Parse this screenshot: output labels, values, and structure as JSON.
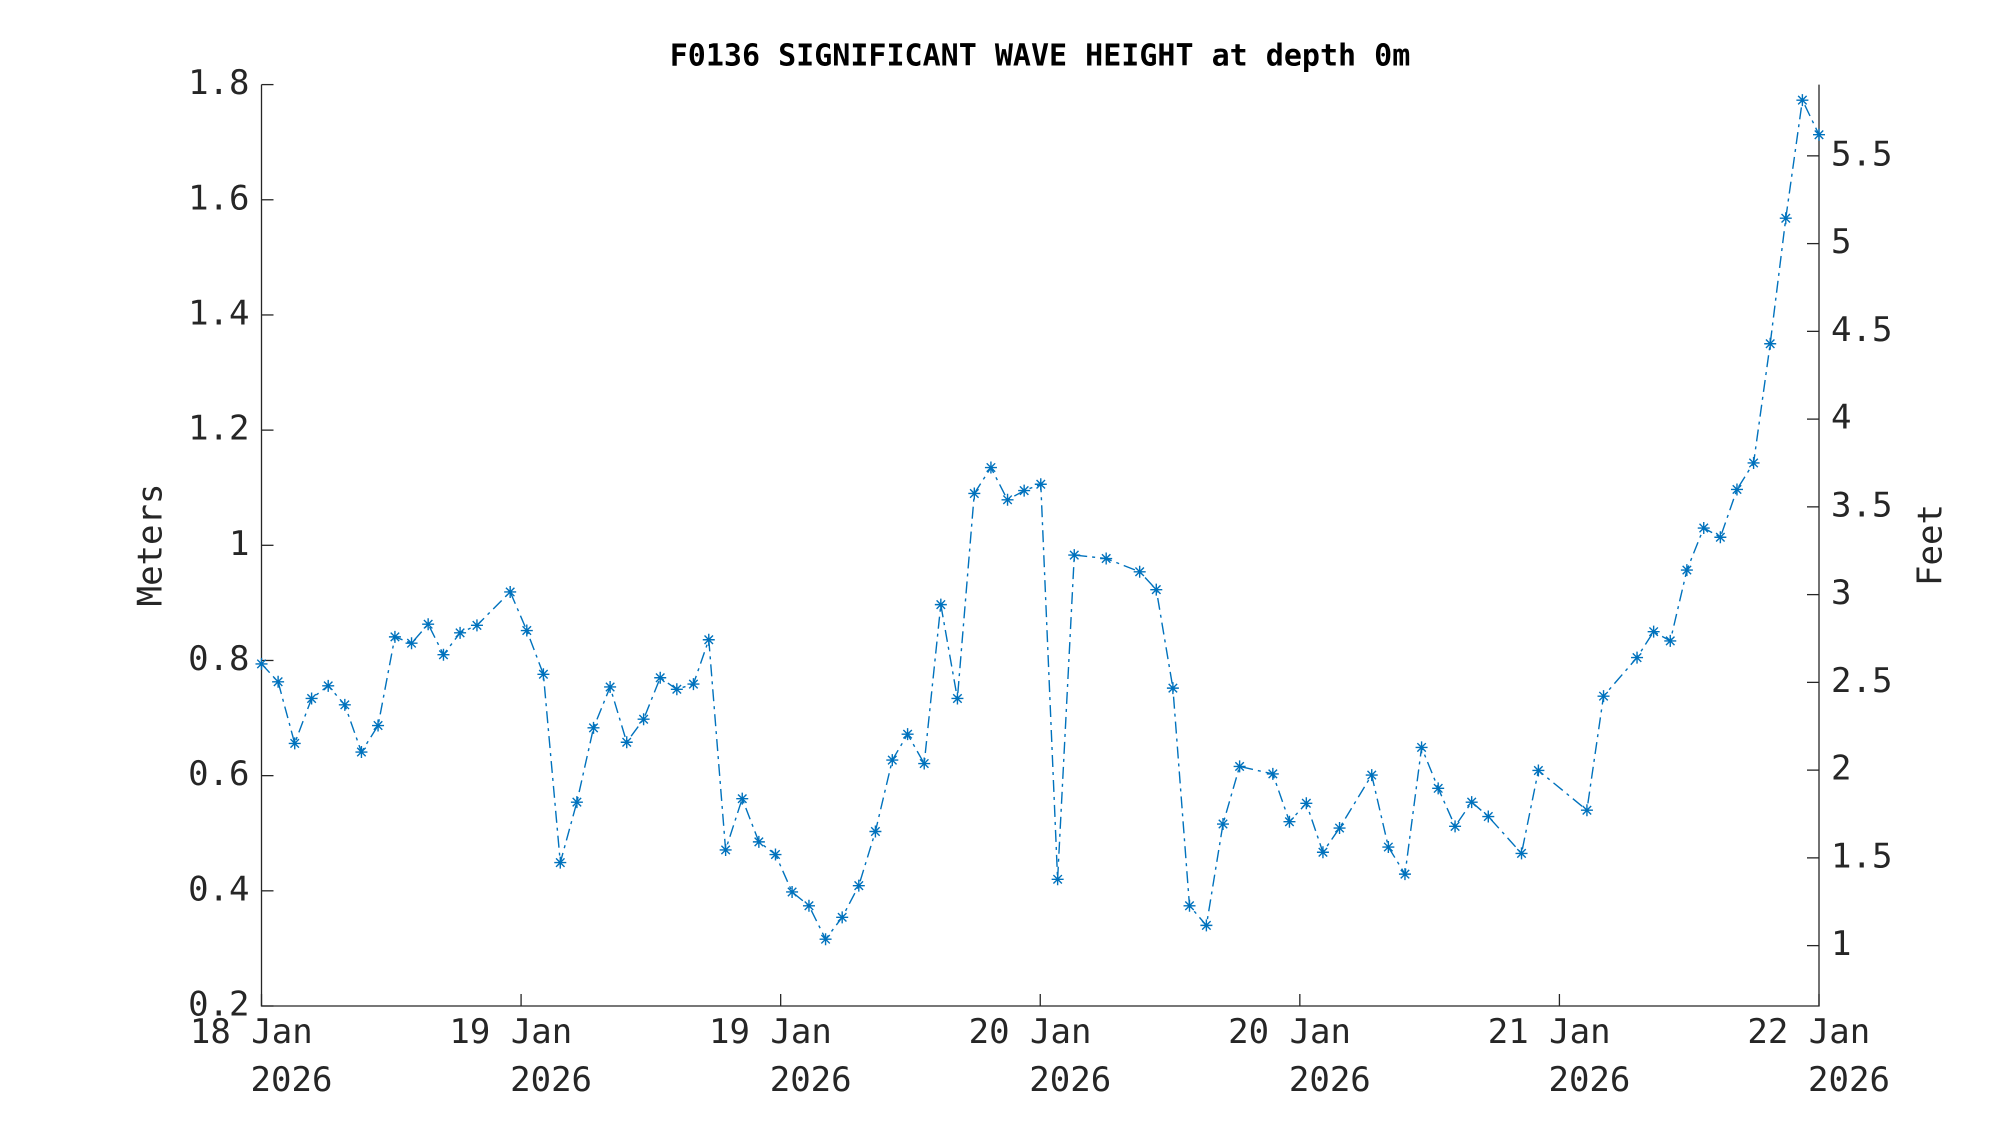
{
  "chart_data": {
    "type": "line",
    "title": "F0136 SIGNIFICANT WAVE HEIGHT at depth 0m",
    "ylabel": "Meters",
    "y2label": "Feet",
    "x": [
      0,
      0.064,
      0.128,
      0.193,
      0.257,
      0.321,
      0.385,
      0.449,
      0.514,
      0.578,
      0.642,
      0.701,
      0.765,
      0.83,
      0.958,
      1.022,
      1.086,
      1.151,
      1.215,
      1.279,
      1.343,
      1.407,
      1.472,
      1.536,
      1.6,
      1.664,
      1.723,
      1.788,
      1.852,
      1.916,
      1.98,
      2.044,
      2.109,
      2.173,
      2.237,
      2.301,
      2.365,
      2.43,
      2.489,
      2.553,
      2.617,
      2.681,
      2.746,
      2.81,
      2.874,
      2.938,
      3.002,
      3.067,
      3.131,
      3.254,
      3.383,
      3.447,
      3.511,
      3.575,
      3.64,
      3.704,
      3.768,
      3.896,
      3.96,
      4.025,
      4.089,
      4.153,
      4.277,
      4.341,
      4.405,
      4.469,
      4.533,
      4.598,
      4.662,
      4.726,
      4.854,
      4.919,
      5.106,
      5.17,
      5.299,
      5.363,
      5.427,
      5.491,
      5.556,
      5.62,
      5.684,
      5.748,
      5.812,
      5.872,
      5.936,
      6
    ],
    "series": [
      {
        "color": "#0072bd",
        "marker": "*",
        "linestyle": "dashdot",
        "values": [
          0.794,
          0.763,
          0.656,
          0.734,
          0.756,
          0.723,
          0.641,
          0.687,
          0.841,
          0.83,
          0.863,
          0.81,
          0.848,
          0.861,
          0.919,
          0.852,
          0.776,
          0.449,
          0.554,
          0.683,
          0.754,
          0.658,
          0.698,
          0.77,
          0.75,
          0.759,
          0.836,
          0.471,
          0.56,
          0.485,
          0.463,
          0.398,
          0.374,
          0.316,
          0.354,
          0.409,
          0.503,
          0.627,
          0.672,
          0.621,
          0.897,
          0.734,
          1.09,
          1.135,
          1.079,
          1.095,
          1.106,
          0.42,
          0.983,
          0.977,
          0.954,
          0.923,
          0.752,
          0.374,
          0.34,
          0.516,
          0.616,
          0.603,
          0.52,
          0.552,
          0.467,
          0.509,
          0.601,
          0.476,
          0.429,
          0.649,
          0.578,
          0.512,
          0.554,
          0.529,
          0.465,
          0.609,
          0.54,
          0.738,
          0.805,
          0.85,
          0.834,
          0.957,
          1.03,
          1.014,
          1.097,
          1.143,
          1.35,
          1.568,
          1.773,
          1.713
        ]
      }
    ],
    "xlim": [
      0,
      6
    ],
    "xticks": [
      {
        "value": 0,
        "label": "18 Jan 2026"
      },
      {
        "value": 1,
        "label": "19 Jan 2026"
      },
      {
        "value": 2,
        "label": "19 Jan 2026"
      },
      {
        "value": 3,
        "label": "20 Jan 2026"
      },
      {
        "value": 4,
        "label": "20 Jan 2026"
      },
      {
        "value": 5,
        "label": "21 Jan 2026"
      },
      {
        "value": 6,
        "label": "22 Jan 2026"
      }
    ],
    "ylim": [
      0.2,
      1.8
    ],
    "yticks": [
      0.2,
      0.4,
      0.6,
      0.8,
      1,
      1.2,
      1.4,
      1.6,
      1.8
    ],
    "y2lim": [
      0.656,
      5.906
    ],
    "y2ticks": [
      1,
      1.5,
      2,
      2.5,
      3,
      3.5,
      4,
      4.5,
      5,
      5.5
    ]
  }
}
